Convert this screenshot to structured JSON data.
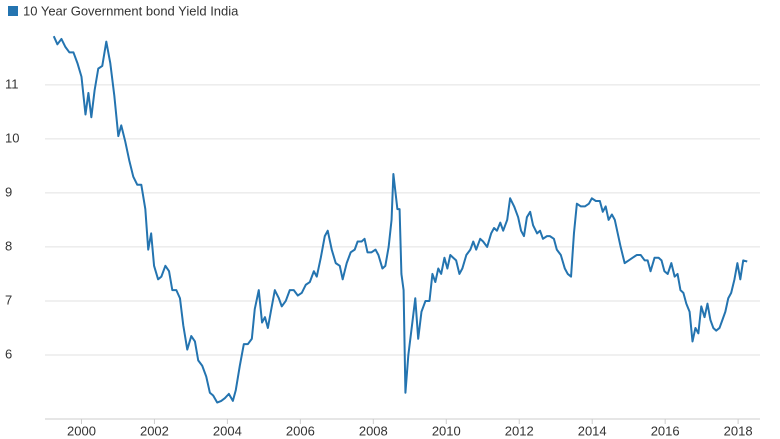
{
  "chart_data": {
    "type": "line",
    "series": [
      {
        "name": "10 Year Government bond Yield India",
        "color": "#2474b0",
        "x": [
          1999.24,
          1999.34,
          1999.45,
          1999.56,
          1999.67,
          1999.78,
          1999.89,
          2000.0,
          2000.11,
          2000.19,
          2000.27,
          2000.36,
          2000.46,
          2000.57,
          2000.68,
          2000.79,
          2000.9,
          2001.01,
          2001.09,
          2001.2,
          2001.31,
          2001.42,
          2001.53,
          2001.64,
          2001.75,
          2001.83,
          2001.91,
          2001.99,
          2002.1,
          2002.19,
          2002.3,
          2002.4,
          2002.49,
          2002.6,
          2002.7,
          2002.79,
          2002.9,
          2003.01,
          2003.11,
          2003.2,
          2003.31,
          2003.42,
          2003.52,
          2003.61,
          2003.72,
          2003.83,
          2003.93,
          2004.04,
          2004.15,
          2004.23,
          2004.34,
          2004.45,
          2004.56,
          2004.67,
          2004.75,
          2004.86,
          2004.95,
          2005.03,
          2005.11,
          2005.19,
          2005.3,
          2005.41,
          2005.49,
          2005.6,
          2005.71,
          2005.82,
          2005.93,
          2006.04,
          2006.15,
          2006.26,
          2006.37,
          2006.45,
          2006.56,
          2006.67,
          2006.75,
          2006.86,
          2006.97,
          2007.08,
          2007.16,
          2007.27,
          2007.38,
          2007.49,
          2007.57,
          2007.68,
          2007.76,
          2007.84,
          2007.95,
          2008.06,
          2008.14,
          2008.25,
          2008.33,
          2008.42,
          2008.5,
          2008.55,
          2008.66,
          2008.72,
          2008.77,
          2008.83,
          2008.88,
          2008.96,
          2009.07,
          2009.15,
          2009.23,
          2009.32,
          2009.43,
          2009.54,
          2009.62,
          2009.7,
          2009.78,
          2009.86,
          2009.95,
          2010.03,
          2010.11,
          2010.19,
          2010.27,
          2010.36,
          2010.44,
          2010.55,
          2010.66,
          2010.74,
          2010.82,
          2010.93,
          2011.01,
          2011.12,
          2011.23,
          2011.31,
          2011.39,
          2011.48,
          2011.56,
          2011.67,
          2011.75,
          2011.86,
          2011.97,
          2012.05,
          2012.13,
          2012.21,
          2012.3,
          2012.38,
          2012.49,
          2012.57,
          2012.65,
          2012.76,
          2012.84,
          2012.95,
          2013.03,
          2013.14,
          2013.25,
          2013.33,
          2013.42,
          2013.5,
          2013.58,
          2013.69,
          2013.8,
          2013.91,
          2013.99,
          2014.1,
          2014.21,
          2014.29,
          2014.37,
          2014.45,
          2014.54,
          2014.62,
          2014.7,
          2014.78,
          2014.89,
          2015.0,
          2015.11,
          2015.22,
          2015.33,
          2015.44,
          2015.52,
          2015.6,
          2015.71,
          2015.82,
          2015.9,
          2015.98,
          2016.07,
          2016.17,
          2016.26,
          2016.34,
          2016.42,
          2016.5,
          2016.58,
          2016.67,
          2016.75,
          2016.83,
          2016.91,
          2016.99,
          2017.08,
          2017.16,
          2017.24,
          2017.32,
          2017.4,
          2017.49,
          2017.57,
          2017.65,
          2017.73,
          2017.81,
          2017.9,
          2017.98,
          2018.06,
          2018.14,
          2018.25
        ],
        "values": [
          11.9,
          11.75,
          11.85,
          11.7,
          11.6,
          11.6,
          11.4,
          11.15,
          10.45,
          10.85,
          10.4,
          10.9,
          11.3,
          11.35,
          11.8,
          11.4,
          10.8,
          10.05,
          10.25,
          9.95,
          9.6,
          9.3,
          9.15,
          9.15,
          8.7,
          7.95,
          8.25,
          7.65,
          7.4,
          7.45,
          7.65,
          7.55,
          7.2,
          7.2,
          7.05,
          6.55,
          6.1,
          6.35,
          6.25,
          5.9,
          5.8,
          5.6,
          5.3,
          5.25,
          5.12,
          5.15,
          5.2,
          5.28,
          5.15,
          5.35,
          5.8,
          6.2,
          6.2,
          6.3,
          6.85,
          7.2,
          6.6,
          6.7,
          6.5,
          6.8,
          7.2,
          7.05,
          6.9,
          7.0,
          7.2,
          7.2,
          7.1,
          7.15,
          7.3,
          7.35,
          7.55,
          7.45,
          7.8,
          8.2,
          8.3,
          7.95,
          7.7,
          7.65,
          7.4,
          7.7,
          7.9,
          7.95,
          8.1,
          8.1,
          8.15,
          7.9,
          7.9,
          7.95,
          7.85,
          7.6,
          7.65,
          8.0,
          8.5,
          9.35,
          8.7,
          8.7,
          7.5,
          7.2,
          5.3,
          6.0,
          6.6,
          7.05,
          6.3,
          6.8,
          7.0,
          7.0,
          7.5,
          7.35,
          7.6,
          7.5,
          7.8,
          7.6,
          7.85,
          7.8,
          7.75,
          7.5,
          7.6,
          7.85,
          7.95,
          8.1,
          7.95,
          8.15,
          8.1,
          8.0,
          8.25,
          8.35,
          8.3,
          8.45,
          8.3,
          8.5,
          8.9,
          8.75,
          8.55,
          8.3,
          8.2,
          8.55,
          8.65,
          8.4,
          8.25,
          8.3,
          8.15,
          8.2,
          8.2,
          8.15,
          7.95,
          7.85,
          7.6,
          7.5,
          7.45,
          8.25,
          8.8,
          8.75,
          8.75,
          8.8,
          8.9,
          8.85,
          8.85,
          8.65,
          8.75,
          8.5,
          8.6,
          8.5,
          8.25,
          8.0,
          7.7,
          7.75,
          7.8,
          7.85,
          7.85,
          7.75,
          7.75,
          7.55,
          7.8,
          7.8,
          7.75,
          7.55,
          7.5,
          7.7,
          7.45,
          7.5,
          7.2,
          7.15,
          6.95,
          6.8,
          6.25,
          6.5,
          6.4,
          6.9,
          6.7,
          6.95,
          6.65,
          6.5,
          6.45,
          6.5,
          6.65,
          6.8,
          7.05,
          7.15,
          7.4,
          7.7,
          7.4,
          7.75,
          7.73
        ]
      }
    ],
    "xlim": [
      1999,
      2018.6
    ],
    "xticks": [
      2000,
      2002,
      2004,
      2006,
      2008,
      2010,
      2012,
      2014,
      2016,
      2018
    ],
    "ylim": [
      5,
      12.2
    ],
    "yticks": [
      6,
      7,
      8,
      9,
      10,
      11
    ],
    "grid": true,
    "legend": "top-left"
  }
}
